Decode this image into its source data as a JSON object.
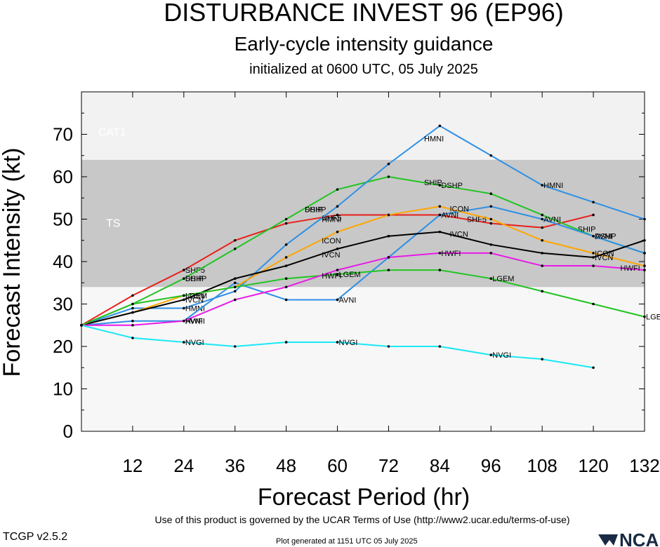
{
  "header": {
    "title": "DISTURBANCE INVEST 96 (EP96)",
    "subtitle": "Early-cycle intensity guidance",
    "initialized": "initialized at 0600 UTC, 05 July 2025"
  },
  "footer": {
    "terms": "Use of this product is governed by the UCAR Terms of Use (http://www2.ucar.edu/terms-of-use)",
    "version": "TCGP v2.5.2",
    "generated": "Plot generated at 1151 UTC   05 July 2025",
    "logo": "NCAR"
  },
  "chart_data": {
    "type": "line",
    "xlabel": "Forecast Period (hr)",
    "ylabel": "Forecast Intensity (kt)",
    "xlim": [
      0,
      132
    ],
    "ylim": [
      0,
      80
    ],
    "xticks": [
      12,
      24,
      36,
      48,
      60,
      72,
      84,
      96,
      108,
      120,
      132
    ],
    "yticks": [
      0,
      10,
      20,
      30,
      40,
      50,
      60,
      70
    ],
    "bands": [
      {
        "name": "TS",
        "from": 34,
        "to": 64,
        "color": "#c8c8c8"
      },
      {
        "name": "CAT1",
        "from": 64,
        "to": 83,
        "color": "#f2f2f2"
      }
    ],
    "depression_band_color": "#f7f7f7",
    "series": [
      {
        "name": "SHF5",
        "color": "#e8201a",
        "x": [
          0,
          12,
          24,
          36,
          48,
          60,
          72,
          84,
          96,
          108,
          120
        ],
        "y": [
          25,
          32,
          38,
          45,
          49,
          51,
          51,
          51,
          49,
          48,
          51
        ],
        "labels": [
          [
            24,
            "SHF5"
          ],
          [
            56,
            "SHF5"
          ],
          [
            90,
            "SHF5"
          ]
        ]
      },
      {
        "name": "DSHP",
        "color": "#22c422",
        "x": [
          0,
          12,
          24,
          36,
          48,
          60,
          72,
          84,
          96,
          108,
          120,
          132
        ],
        "y": [
          25,
          30,
          36,
          43,
          50,
          57,
          60,
          58,
          56,
          51,
          46,
          42
        ],
        "labels": [
          [
            24,
            "DSHP"
          ],
          [
            52,
            "DSHP"
          ],
          [
            84,
            "DSHP"
          ],
          [
            120,
            "DSHP"
          ]
        ]
      },
      {
        "name": "SHIP",
        "color": "#22c422",
        "x": [],
        "y": [],
        "labels": [
          [
            24,
            "SHIP"
          ],
          [
            52,
            "SHIP"
          ],
          [
            80,
            "SHIP"
          ],
          [
            116,
            "SHIP"
          ]
        ]
      },
      {
        "name": "HMNI",
        "color": "#2e90e6",
        "x": [
          0,
          12,
          24,
          36,
          48,
          60,
          72,
          84,
          96,
          108,
          120,
          132
        ],
        "y": [
          25,
          29,
          29,
          33,
          44,
          53,
          63,
          72,
          65,
          58,
          54,
          50
        ],
        "labels": [
          [
            24,
            "HMNI"
          ],
          [
            56,
            "HMNI"
          ],
          [
            80,
            "HMNI"
          ],
          [
            108,
            "HMNI"
          ]
        ]
      },
      {
        "name": "AVNI",
        "color": "#2e90e6",
        "x": [
          0,
          12,
          24,
          36,
          48,
          60,
          72,
          84,
          96,
          108,
          120,
          132
        ],
        "y": [
          25,
          26,
          26,
          35,
          31,
          31,
          41,
          51,
          53,
          50,
          46,
          42
        ],
        "labels": [
          [
            24,
            "AVNI"
          ],
          [
            60,
            "AVNI"
          ],
          [
            84,
            "AVNI"
          ],
          [
            108,
            "AVNI"
          ],
          [
            120,
            "AVNI"
          ]
        ]
      },
      {
        "name": "ICON",
        "color": "#ffa500",
        "x": [
          0,
          12,
          24,
          36,
          48,
          60,
          72,
          84,
          96,
          108,
          120,
          132
        ],
        "y": [
          25,
          28,
          32,
          34,
          41,
          47,
          51,
          53,
          50,
          45,
          42,
          39
        ],
        "labels": [
          [
            24,
            "ICON"
          ],
          [
            56,
            "ICON"
          ],
          [
            86,
            "ICON"
          ],
          [
            120,
            "ICON"
          ]
        ]
      },
      {
        "name": "IVCN",
        "color": "#000000",
        "x": [
          0,
          12,
          24,
          36,
          48,
          60,
          72,
          84,
          96,
          108,
          120,
          132
        ],
        "y": [
          25,
          28,
          31,
          36,
          39,
          43,
          46,
          47,
          44,
          42,
          41,
          45
        ],
        "labels": [
          [
            24,
            "IVCN"
          ],
          [
            56,
            "IVCN"
          ],
          [
            86,
            "IVCN"
          ],
          [
            120,
            "IVCN"
          ]
        ]
      },
      {
        "name": "LGEM",
        "color": "#22c422",
        "x": [
          0,
          12,
          24,
          36,
          48,
          60,
          72,
          84,
          96,
          108,
          120,
          132
        ],
        "y": [
          25,
          30,
          32,
          34,
          36,
          37,
          38,
          38,
          36,
          33,
          30,
          27
        ],
        "labels": [
          [
            24,
            "LGEM"
          ],
          [
            60,
            "LGEM"
          ],
          [
            96,
            "LGEM"
          ],
          [
            132,
            "LGEM"
          ]
        ]
      },
      {
        "name": "HWFI",
        "color": "#e81ae8",
        "x": [
          0,
          12,
          24,
          36,
          48,
          60,
          72,
          84,
          96,
          108,
          120,
          132
        ],
        "y": [
          25,
          25,
          26,
          31,
          34,
          38,
          41,
          42,
          42,
          39,
          39,
          38
        ],
        "labels": [
          [
            24,
            "HWFI"
          ],
          [
            56,
            "HWFI"
          ],
          [
            84,
            "HWFI"
          ],
          [
            126,
            "HWFI"
          ]
        ]
      },
      {
        "name": "NVGI",
        "color": "#19e8f5",
        "x": [
          0,
          12,
          24,
          36,
          48,
          60,
          72,
          84,
          96,
          108,
          120
        ],
        "y": [
          25,
          22,
          21,
          20,
          21,
          21,
          20,
          20,
          18,
          17,
          15
        ],
        "labels": [
          [
            24,
            "NVGI"
          ],
          [
            60,
            "NVGI"
          ],
          [
            96,
            "NVGI"
          ]
        ]
      }
    ]
  }
}
